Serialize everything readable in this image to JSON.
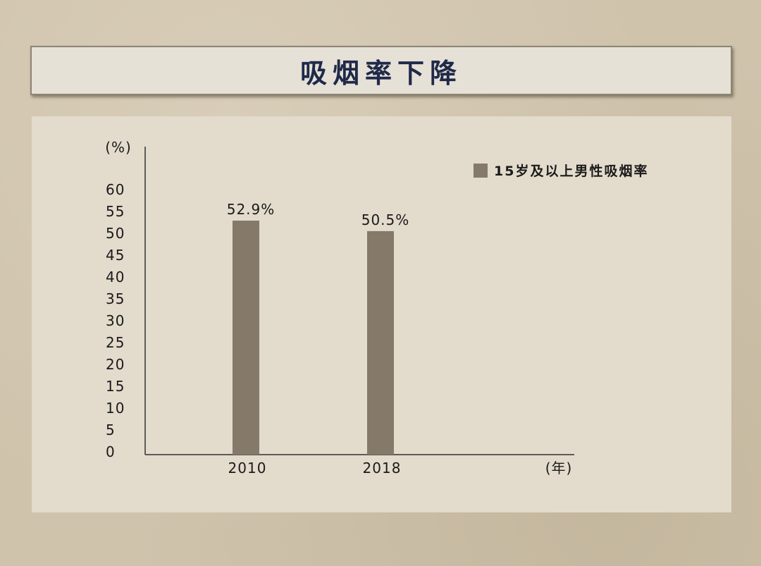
{
  "title": "吸烟率下降",
  "chart_data": {
    "type": "bar",
    "categories": [
      "2010",
      "2018"
    ],
    "series": [
      {
        "name": "15岁及以上男性吸烟率",
        "values": [
          52.9,
          50.5
        ],
        "color": "#857a6a"
      }
    ],
    "data_labels": [
      "52.9%",
      "50.5%"
    ],
    "yticks": [
      0,
      5,
      10,
      15,
      20,
      25,
      30,
      35,
      40,
      45,
      50,
      55,
      60
    ],
    "ylim": [
      0,
      60
    ],
    "ylabel": "(%)",
    "xlabel": "(年)",
    "legend_position": "top-right",
    "grid": false
  }
}
